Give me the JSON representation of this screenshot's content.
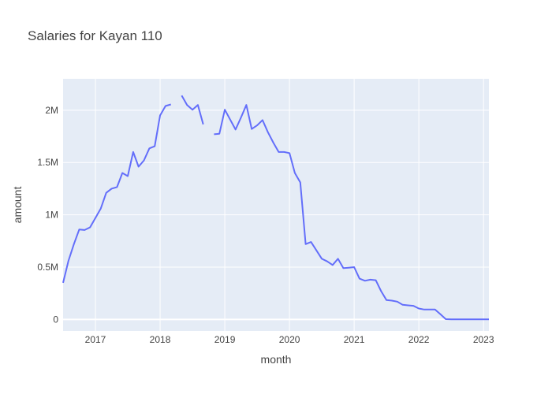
{
  "chart_data": {
    "type": "line",
    "title": "Salaries for Kayan 110",
    "xlabel": "month",
    "ylabel": "amount",
    "xlim": [
      "2016-07",
      "2023-02"
    ],
    "ylim": [
      -110000,
      2300000
    ],
    "x_ticks": [
      {
        "value": "2017-01",
        "label": "2017"
      },
      {
        "value": "2018-01",
        "label": "2018"
      },
      {
        "value": "2019-01",
        "label": "2019"
      },
      {
        "value": "2020-01",
        "label": "2020"
      },
      {
        "value": "2021-01",
        "label": "2021"
      },
      {
        "value": "2022-01",
        "label": "2022"
      },
      {
        "value": "2023-01",
        "label": "2023"
      }
    ],
    "y_ticks": [
      {
        "value": 0,
        "label": "0"
      },
      {
        "value": 500000,
        "label": "0.5M"
      },
      {
        "value": 1000000,
        "label": "1M"
      },
      {
        "value": 1500000,
        "label": "1.5M"
      },
      {
        "value": 2000000,
        "label": "2M"
      }
    ],
    "colors": {
      "line": "#636efa",
      "plot_bg": "#e5ecf6",
      "grid": "#ffffff",
      "text": "#444444"
    },
    "series": [
      {
        "name": "amount",
        "points": [
          [
            "2016-07",
            350000
          ],
          [
            "2016-08",
            560000
          ],
          [
            "2016-09",
            720000
          ],
          [
            "2016-10",
            860000
          ],
          [
            "2016-11",
            855000
          ],
          [
            "2016-12",
            880000
          ],
          [
            "2017-01",
            970000
          ],
          [
            "2017-02",
            1060000
          ],
          [
            "2017-03",
            1210000
          ],
          [
            "2017-04",
            1250000
          ],
          [
            "2017-05",
            1265000
          ],
          [
            "2017-06",
            1400000
          ],
          [
            "2017-07",
            1370000
          ],
          [
            "2017-08",
            1600000
          ],
          [
            "2017-09",
            1460000
          ],
          [
            "2017-10",
            1520000
          ],
          [
            "2017-11",
            1635000
          ],
          [
            "2017-12",
            1655000
          ],
          [
            "2018-01",
            1950000
          ],
          [
            "2018-02",
            2040000
          ],
          [
            "2018-03",
            2055000
          ],
          [
            "2018-04",
            null
          ],
          [
            "2018-05",
            2140000
          ],
          [
            "2018-06",
            2050000
          ],
          [
            "2018-07",
            2005000
          ],
          [
            "2018-08",
            2050000
          ],
          [
            "2018-09",
            1865000
          ],
          [
            "2018-10",
            null
          ],
          [
            "2018-11",
            1770000
          ],
          [
            "2018-12",
            1775000
          ],
          [
            "2019-01",
            2005000
          ],
          [
            "2019-02",
            1910000
          ],
          [
            "2019-03",
            1815000
          ],
          [
            "2019-04",
            1930000
          ],
          [
            "2019-05",
            2050000
          ],
          [
            "2019-06",
            1820000
          ],
          [
            "2019-07",
            1855000
          ],
          [
            "2019-08",
            1905000
          ],
          [
            "2019-09",
            1790000
          ],
          [
            "2019-10",
            1690000
          ],
          [
            "2019-11",
            1600000
          ],
          [
            "2019-12",
            1600000
          ],
          [
            "2020-01",
            1590000
          ],
          [
            "2020-02",
            1400000
          ],
          [
            "2020-03",
            1310000
          ],
          [
            "2020-04",
            720000
          ],
          [
            "2020-05",
            740000
          ],
          [
            "2020-06",
            660000
          ],
          [
            "2020-07",
            580000
          ],
          [
            "2020-08",
            555000
          ],
          [
            "2020-09",
            520000
          ],
          [
            "2020-10",
            580000
          ],
          [
            "2020-11",
            490000
          ],
          [
            "2020-12",
            495000
          ],
          [
            "2021-01",
            500000
          ],
          [
            "2021-02",
            390000
          ],
          [
            "2021-03",
            370000
          ],
          [
            "2021-04",
            380000
          ],
          [
            "2021-05",
            375000
          ],
          [
            "2021-06",
            270000
          ],
          [
            "2021-07",
            185000
          ],
          [
            "2021-08",
            180000
          ],
          [
            "2021-09",
            170000
          ],
          [
            "2021-10",
            140000
          ],
          [
            "2021-11",
            135000
          ],
          [
            "2021-12",
            130000
          ],
          [
            "2022-01",
            105000
          ],
          [
            "2022-02",
            95000
          ],
          [
            "2022-03",
            95000
          ],
          [
            "2022-04",
            95000
          ],
          [
            "2022-05",
            50000
          ],
          [
            "2022-06",
            3000
          ],
          [
            "2022-07",
            1000
          ],
          [
            "2022-08",
            1000
          ],
          [
            "2022-09",
            1000
          ],
          [
            "2022-10",
            1000
          ],
          [
            "2022-11",
            1000
          ],
          [
            "2022-12",
            1000
          ],
          [
            "2023-01",
            1000
          ],
          [
            "2023-02",
            1000
          ]
        ]
      }
    ]
  }
}
